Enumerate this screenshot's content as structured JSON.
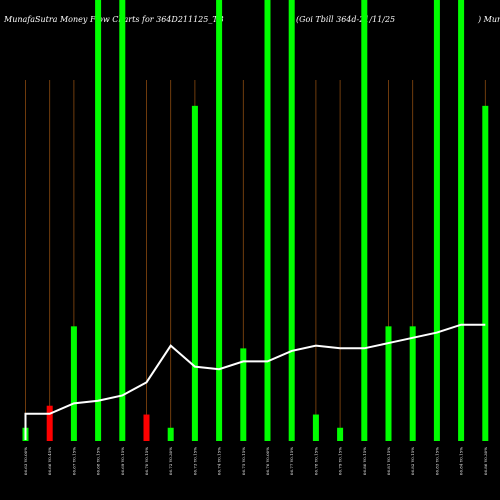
{
  "chart_data": {
    "type": "bar",
    "title_left": "MunafaSutra  Money  Flow  Charts for 364D211125_TB",
    "title_mid": "(Goi   Tbill 364d-21/11/25",
    "title_right": ") Munaf",
    "categories": [
      "06.63 Y0.00%",
      "06.66 Y0.45%",
      "06.67 Y0.15%",
      "06.68 Y0.15%",
      "06.69 Y0.15%",
      "06.70 Y0.15%",
      "06.72 Y0.30%",
      "06.73 Y0.15%",
      "06.74 Y0.15%",
      "06.75 Y0.15%",
      "06.76 Y0.00%",
      "06.77 Y0.15%",
      "06.78 Y0.15%",
      "06.79 Y0.15%",
      "06.80 Y0.15%",
      "06.81 Y0.15%",
      "06.82 Y0.15%",
      "06.83 Y0.15%",
      "06.84 Y0.15%",
      "06.86 Y0.30%"
    ],
    "bar_values": [
      3,
      8,
      26,
      100,
      100,
      6,
      3,
      76,
      100,
      21,
      100,
      100,
      6,
      3,
      100,
      26,
      26,
      100,
      100,
      76
    ],
    "bar_colors": [
      "green",
      "red",
      "green",
      "green",
      "green",
      "red",
      "green",
      "green",
      "green",
      "green",
      "green",
      "green",
      "green",
      "green",
      "green",
      "green",
      "green",
      "green",
      "green",
      "green"
    ],
    "line_values": [
      10,
      10,
      14,
      15,
      17,
      22,
      36,
      28,
      27,
      30,
      30,
      34,
      36,
      35,
      35,
      37,
      39,
      41,
      44,
      44
    ],
    "colors": {
      "background": "#000000",
      "up": "#00ff00",
      "down": "#ff0000",
      "line": "#ffffff",
      "grid": "#8a4a10"
    }
  }
}
